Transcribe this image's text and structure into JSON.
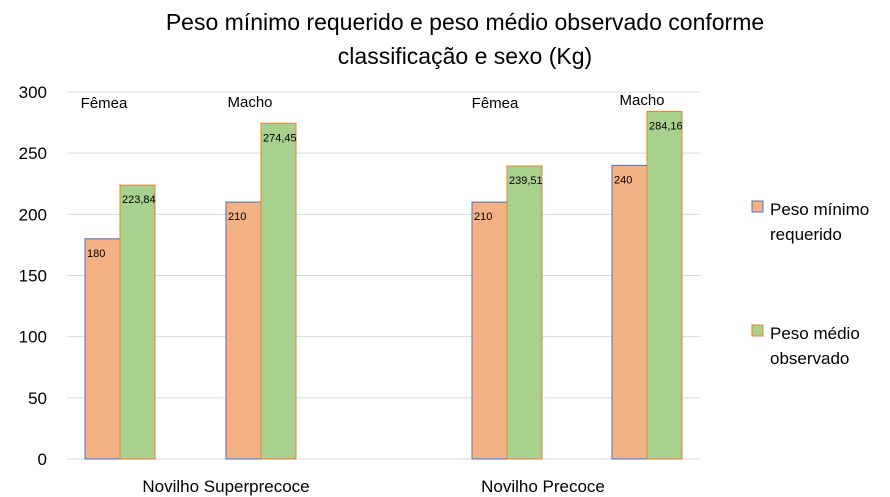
{
  "chart_data": {
    "type": "bar",
    "title_lines": [
      "Peso mínimo requerido e peso médio observado conforme",
      "classificação e sexo (Kg)"
    ],
    "ylim": [
      0,
      300
    ],
    "yticks": [
      0,
      50,
      100,
      150,
      200,
      250,
      300
    ],
    "grid": true,
    "legend_position": "right",
    "groups": [
      {
        "label": "Novilho Superprecoce",
        "subgroups": [
          "Fêmea",
          "Macho"
        ]
      },
      {
        "label": "Novilho Precoce",
        "subgroups": [
          "Fêmea",
          "Macho"
        ]
      }
    ],
    "series": [
      {
        "name_lines": [
          "Peso mínimo",
          "requerido"
        ],
        "color": "#F4B183",
        "edge": "#4472C4",
        "values": [
          180,
          210,
          210,
          240
        ],
        "labels": [
          "180",
          "210",
          "210",
          "240"
        ]
      },
      {
        "name_lines": [
          "Peso médio",
          "observado"
        ],
        "color": "#A9D18E",
        "edge": "#ED7D31",
        "values": [
          223.84,
          274.45,
          239.51,
          284.16
        ],
        "labels": [
          "223,84",
          "274,45",
          "239,51",
          "284,16"
        ]
      }
    ]
  }
}
